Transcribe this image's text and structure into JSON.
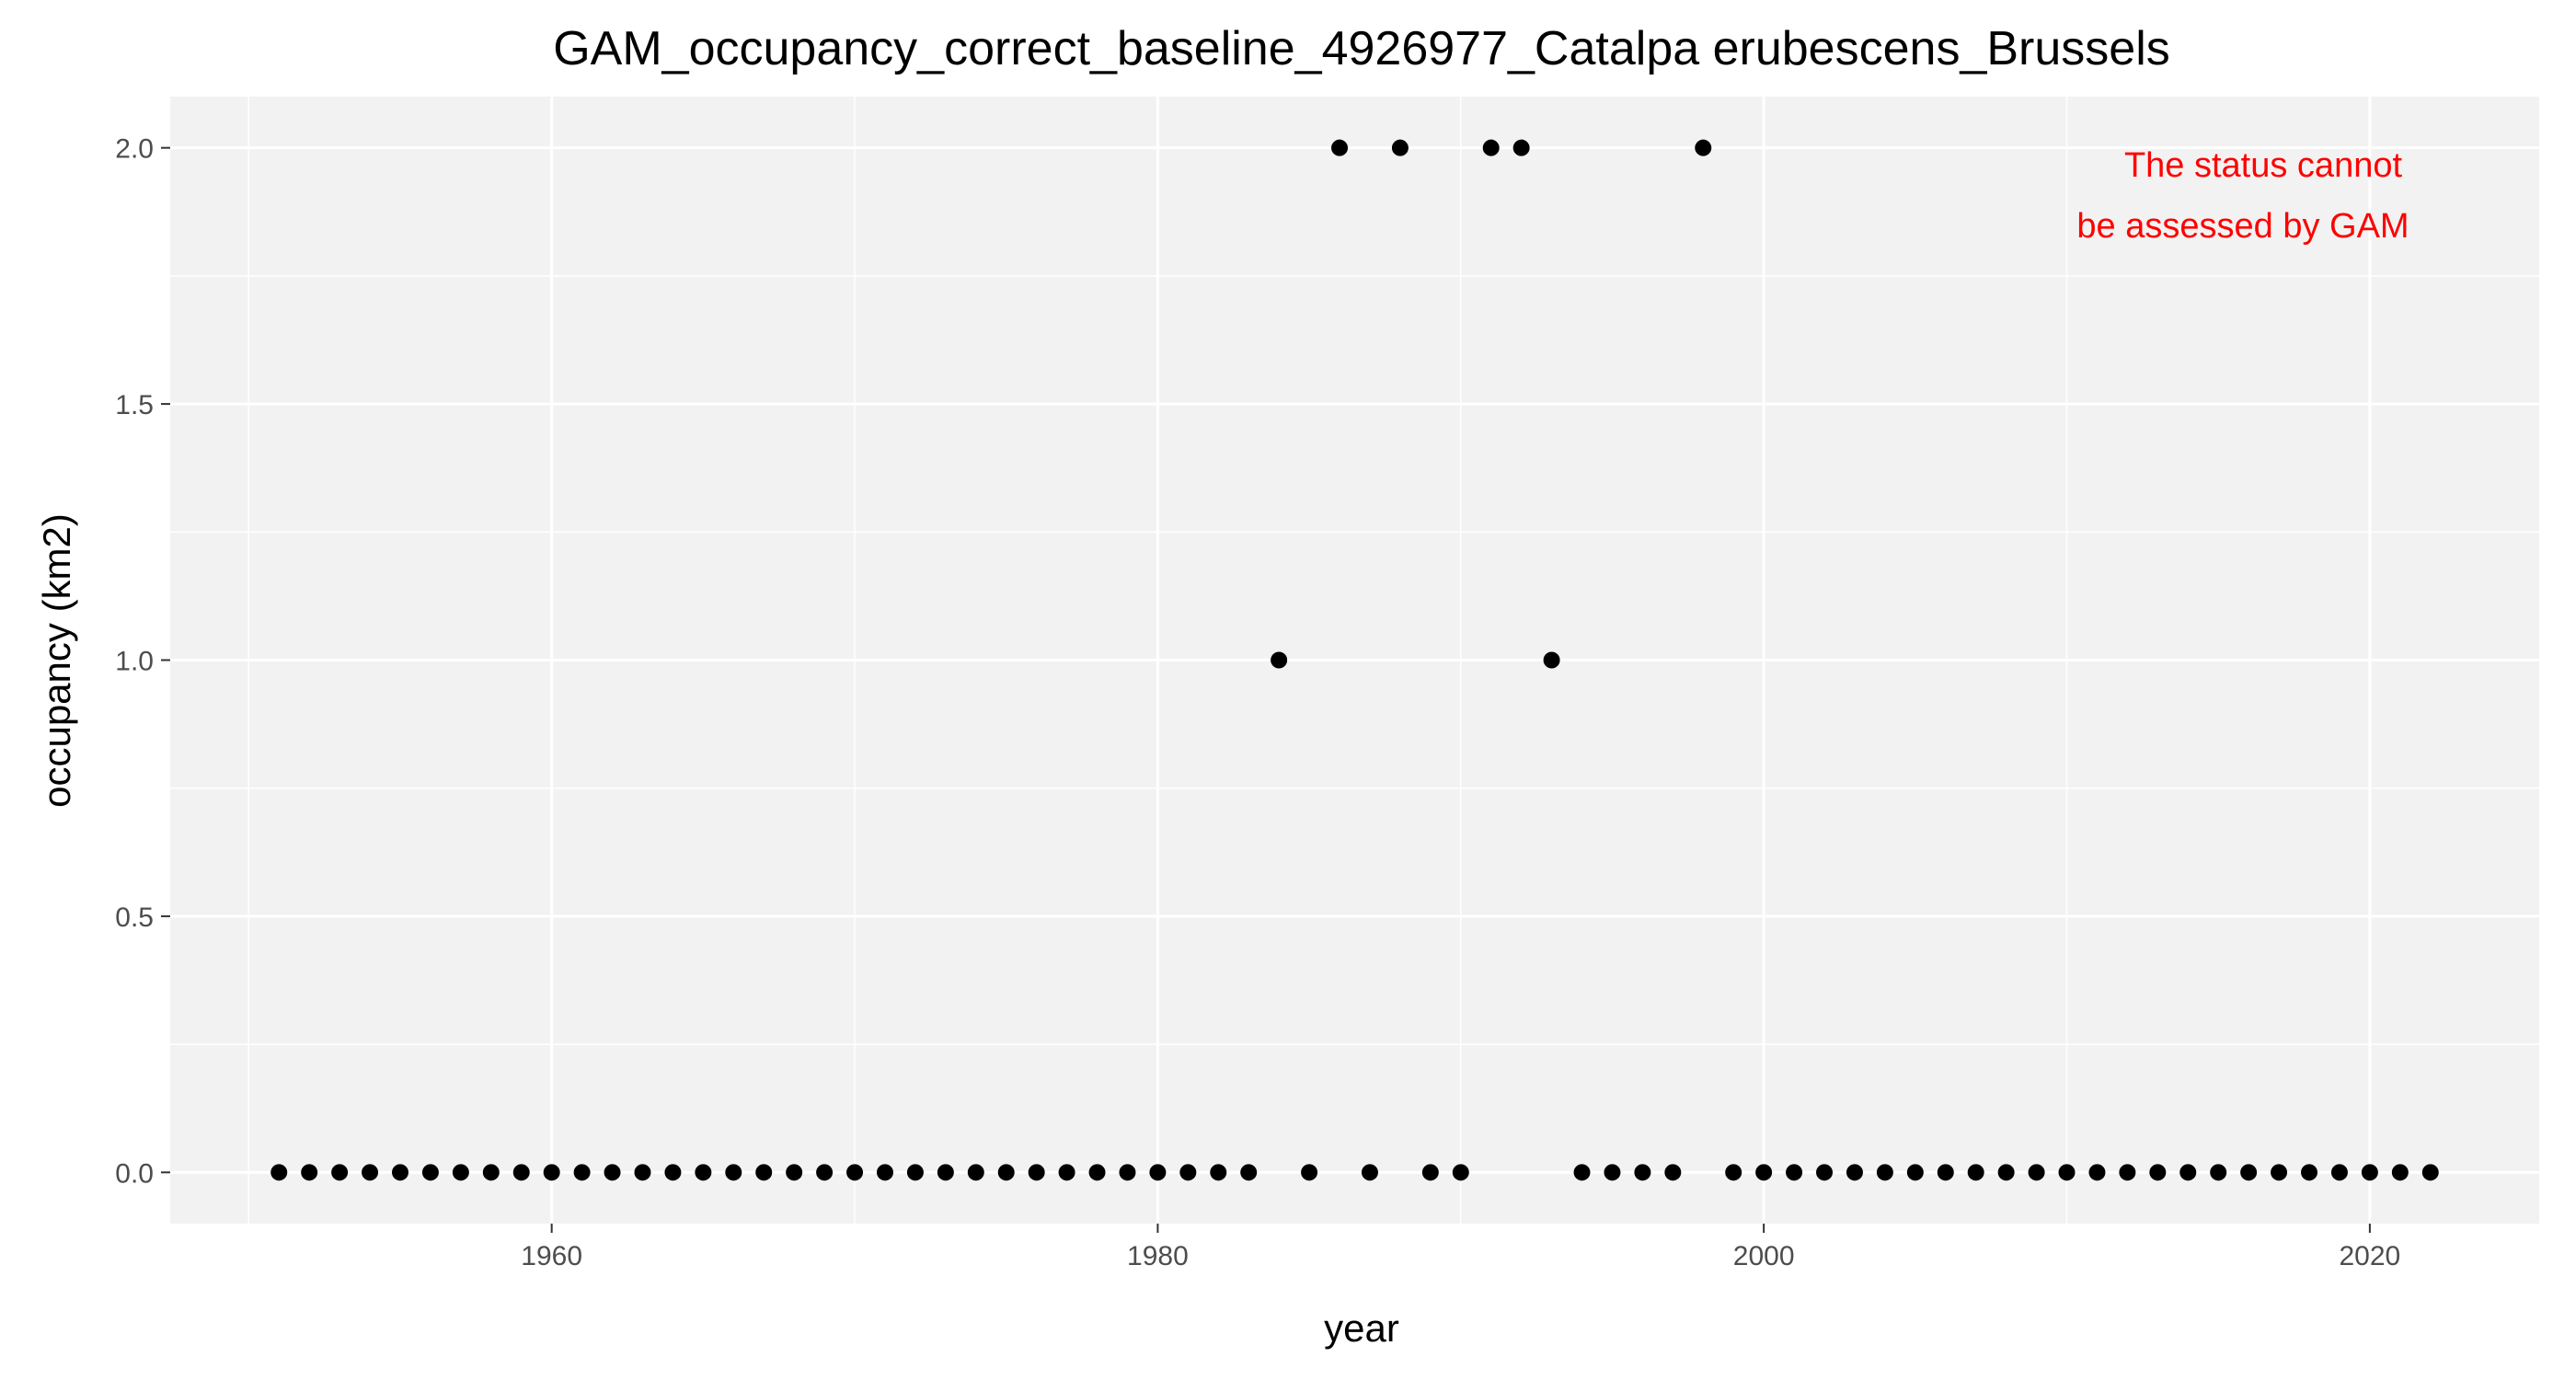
{
  "chart_data": {
    "type": "scatter",
    "title": "GAM_occupancy_correct_baseline_4926977_Catalpa erubescens_Brussels",
    "xlabel": "year",
    "ylabel": "occupancy (km2)",
    "xlim": [
      1947.4,
      1925.5
    ],
    "ylim": [
      -0.1,
      2.1
    ],
    "x_ticks": [
      1960,
      1980,
      2000,
      2020
    ],
    "x_tick_labels": [
      "1960",
      "1980",
      "2000",
      "2020"
    ],
    "y_ticks": [
      0,
      0.5,
      1,
      1.5,
      2
    ],
    "y_tick_labels": [
      "0.0",
      "0.5",
      "1.0",
      "1.5",
      "2.0"
    ],
    "grid": true,
    "legend": "none",
    "annotation": {
      "lines": [
        "The status cannot",
        "be assessed by GAM"
      ],
      "color": "#ff0000",
      "position": "top-right"
    },
    "colors": {
      "panel": "#f2f2f2",
      "grid": "#ffffff",
      "point": "#000000"
    },
    "series": [
      {
        "x": [
          1951,
          1952,
          1953,
          1954,
          1955,
          1956,
          1957,
          1958,
          1959,
          1960,
          1961,
          1962,
          1963,
          1964,
          1965,
          1966,
          1967,
          1968,
          1969,
          1970,
          1971,
          1972,
          1973,
          1974,
          1975,
          1976,
          1977,
          1978,
          1979,
          1980,
          1981,
          1982,
          1983,
          1984,
          1985,
          1986,
          1987,
          1988,
          1989,
          1990,
          1991,
          1992,
          1993,
          1994,
          1995,
          1996,
          1997,
          1998,
          1999,
          2000,
          2001,
          2002,
          2003,
          2004,
          2005,
          2006,
          2007,
          2008,
          2009,
          2010,
          2011,
          2012,
          2013,
          2014,
          2015,
          2016,
          2017,
          2018,
          2019,
          2020,
          2021,
          2022
        ],
        "y": [
          0,
          0,
          0,
          0,
          0,
          0,
          0,
          0,
          0,
          0,
          0,
          0,
          0,
          0,
          0,
          0,
          0,
          0,
          0,
          0,
          0,
          0,
          0,
          0,
          0,
          0,
          0,
          0,
          0,
          0,
          0,
          0,
          0,
          1,
          0,
          2,
          0,
          2,
          0,
          0,
          2,
          2,
          1,
          0,
          0,
          0,
          0,
          2,
          0,
          0,
          0,
          0,
          0,
          0,
          0,
          0,
          0,
          0,
          0,
          0,
          0,
          0,
          0,
          0,
          0,
          0,
          0,
          0,
          0,
          0,
          0,
          0
        ]
      }
    ]
  }
}
